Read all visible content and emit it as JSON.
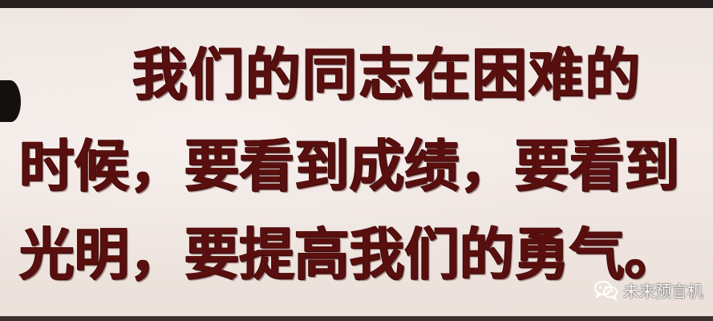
{
  "sign": {
    "lines": [
      "我们的同志在困难的",
      "时候，要看到成绩，要看到",
      "光明，要提高我们的勇气。"
    ],
    "text_color": "#5a0f0f",
    "background_color": "#f0e7e2"
  },
  "watermark": {
    "icon": "wechat-icon",
    "text": "未来预言机"
  }
}
